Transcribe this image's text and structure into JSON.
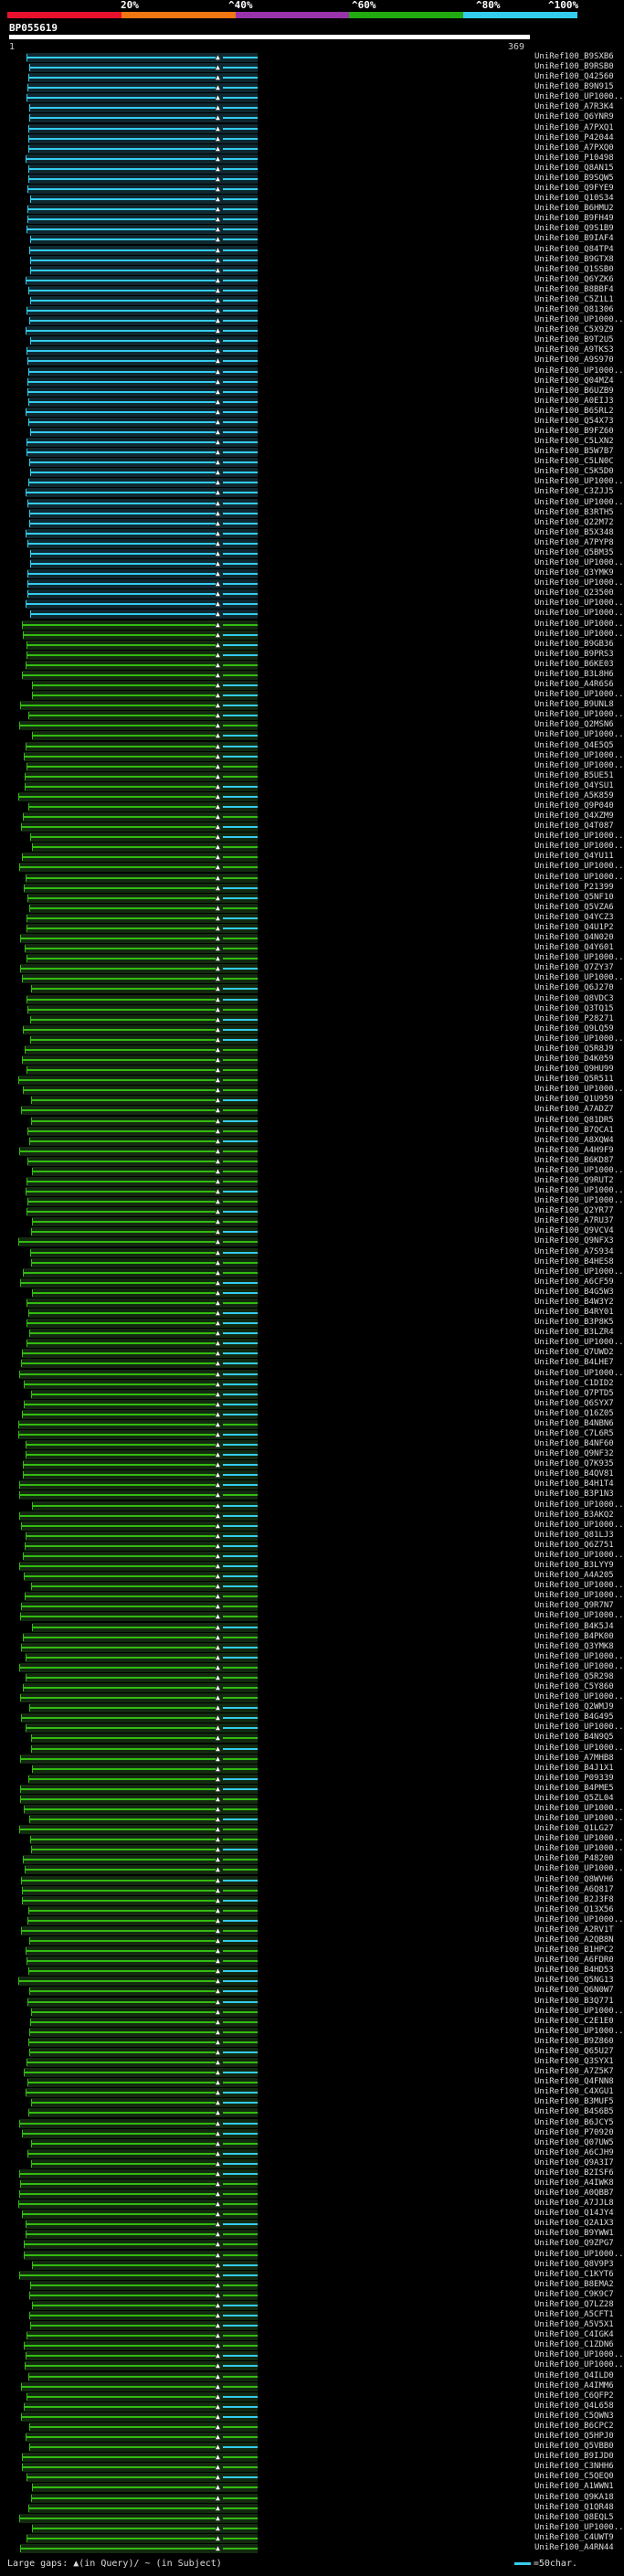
{
  "header": {
    "percent_labels": [
      "20%",
      "^40%",
      "^60%",
      "^80%",
      "^100%"
    ],
    "color_segments": [
      {
        "color": "#e8112d",
        "width": 0.2
      },
      {
        "color": "#ee7711",
        "width": 0.2
      },
      {
        "color": "#9933aa",
        "width": 0.2
      },
      {
        "color": "#22aa11",
        "width": 0.2
      },
      {
        "color": "#33ccee",
        "width": 0.2
      }
    ]
  },
  "query": {
    "id": "BP055619",
    "scale_start": "1",
    "scale_end": "369"
  },
  "colors": {
    "cyan": "#33ccee",
    "green": "#33bb11",
    "white": "#ffffff"
  },
  "hits": [
    "UniRef100_B9SXB6",
    "UniRef100_B9RSB0",
    "UniRef100_Q42560",
    "UniRef100_B9N915",
    "UniRef100_UP1000..",
    "UniRef100_A7R3K4",
    "UniRef100_Q6YNR9",
    "UniRef100_A7PXQ1",
    "UniRef100_P42044",
    "UniRef100_A7PXQ0",
    "UniRef100_P10498",
    "UniRef100_Q8AN15",
    "UniRef100_B9SQW5",
    "UniRef100_Q9FYE9",
    "UniRef100_Q10S34",
    "UniRef100_B6HMU2",
    "UniRef100_B9FH49",
    "UniRef100_Q9S1B9",
    "UniRef100_B9IAF4",
    "UniRef100_Q84TP4",
    "UniRef100_B9GTX8",
    "UniRef100_Q1SSB0",
    "UniRef100_Q6YZK6",
    "UniRef100_B8BBF4",
    "UniRef100_C5Z1L1",
    "UniRef100_Q81306",
    "UniRef100_UP1000..",
    "UniRef100_C5X9Z9",
    "UniRef100_B9T2U5",
    "UniRef100_A9TKS3",
    "UniRef100_A9S970",
    "UniRef100_UP1000..",
    "UniRef100_Q04MZ4",
    "UniRef100_B6UZB9",
    "UniRef100_A0EIJ3",
    "UniRef100_B6SRL2",
    "UniRef100_Q54X73",
    "UniRef100_B9FZ60",
    "UniRef100_C5LXN2",
    "UniRef100_B5W7B7",
    "UniRef100_C5LN0C",
    "UniRef100_C5K5D0",
    "UniRef100_UP1000..",
    "UniRef100_C3ZJJ5",
    "UniRef100_UP1000..",
    "UniRef100_B3RTH5",
    "UniRef100_Q22M72",
    "UniRef100_B5X348",
    "UniRef100_A7PYP8",
    "UniRef100_Q5BM35",
    "UniRef100_UP1000..",
    "UniRef100_Q3YMK9",
    "UniRef100_UP1000..",
    "UniRef100_Q23500",
    "UniRef100_UP1000..",
    "UniRef100_UP1000..",
    "UniRef100_UP1000..",
    "UniRef100_UP1000..",
    "UniRef100_B9GB36",
    "UniRef100_B9PRS3",
    "UniRef100_B6KE03",
    "UniRef100_B3L8H6",
    "UniRef100_A4R6S6",
    "UniRef100_UP1000..",
    "UniRef100_B9UNL8",
    "UniRef100_UP1000..",
    "UniRef100_Q2MSN6",
    "UniRef100_UP1000..",
    "UniRef100_Q4E5Q5",
    "UniRef100_UP1000..",
    "UniRef100_UP1000..",
    "UniRef100_B5UE51",
    "UniRef100_Q4YSU1",
    "UniRef100_A5K859",
    "UniRef100_Q9P040",
    "UniRef100_Q4XZM9",
    "UniRef100_Q4T087",
    "UniRef100_UP1000..",
    "UniRef100_UP1000..",
    "UniRef100_Q4YU11",
    "UniRef100_UP1000..",
    "UniRef100_UP1000..",
    "UniRef100_P21399",
    "UniRef100_Q5NF10",
    "UniRef100_Q5VZA6",
    "UniRef100_Q4YCZ3",
    "UniRef100_Q4U1P2",
    "UniRef100_Q4N020",
    "UniRef100_Q4Y601",
    "UniRef100_UP1000..",
    "UniRef100_Q7ZY37",
    "UniRef100_UP1000..",
    "UniRef100_Q6J270",
    "UniRef100_Q8VDC3",
    "UniRef100_Q3TQ15",
    "UniRef100_P28271",
    "UniRef100_Q9LQ59",
    "UniRef100_UP1000..",
    "UniRef100_Q5R8J9",
    "UniRef100_D4K059",
    "UniRef100_Q9HU99",
    "UniRef100_Q5R511",
    "UniRef100_UP1000..",
    "UniRef100_Q1U959",
    "UniRef100_A7ADZ7",
    "UniRef100_Q81DR5",
    "UniRef100_B7QCA1",
    "UniRef100_A8XQW4",
    "UniRef100_A4H9F9",
    "UniRef100_B6KD87",
    "UniRef100_UP1000..",
    "UniRef100_Q9RUT2",
    "UniRef100_UP1000..",
    "UniRef100_UP1000..",
    "UniRef100_Q2YR77",
    "UniRef100_A7RU37",
    "UniRef100_Q9VCV4",
    "UniRef100_Q9NFX3",
    "UniRef100_A7S934",
    "UniRef100_B4HES8",
    "UniRef100_UP1000..",
    "UniRef100_A6CF59",
    "UniRef100_B4G5W3",
    "UniRef100_B4W3Y2",
    "UniRef100_B4RY01",
    "UniRef100_B3P8K5",
    "UniRef100_B3LZR4",
    "UniRef100_UP1000..",
    "UniRef100_Q7UWD2",
    "UniRef100_B4LHE7",
    "UniRef100_UP1000..",
    "UniRef100_C1DID2",
    "UniRef100_Q7PTD5",
    "UniRef100_Q6SYX7",
    "UniRef100_Q16Z05",
    "UniRef100_B4NBN6",
    "UniRef100_C7L6R5",
    "UniRef100_B4NF60",
    "UniRef100_Q9NF32",
    "UniRef100_Q7K935",
    "UniRef100_B4QV81",
    "UniRef100_B4H1T4",
    "UniRef100_B3P1N3",
    "UniRef100_UP1000..",
    "UniRef100_B3AKQ2",
    "UniRef100_UP1000..",
    "UniRef100_Q81LJ3",
    "UniRef100_Q6Z751",
    "UniRef100_UP1000..",
    "UniRef100_B3LYY9",
    "UniRef100_A4A205",
    "UniRef100_UP1000..",
    "UniRef100_UP1000..",
    "UniRef100_Q9R7N7",
    "UniRef100_UP1000..",
    "UniRef100_B4K5J4",
    "UniRef100_B4PK00",
    "UniRef100_Q3YMK8",
    "UniRef100_UP1000..",
    "UniRef100_UP1000..",
    "UniRef100_Q5R298",
    "UniRef100_C5Y860",
    "UniRef100_UP1000..",
    "UniRef100_Q2WMJ9",
    "UniRef100_B4G495",
    "UniRef100_UP1000..",
    "UniRef100_B4N9Q5",
    "UniRef100_UP1000..",
    "UniRef100_A7MHB8",
    "UniRef100_B4J1X1",
    "UniRef100_P09339",
    "UniRef100_B4PME5",
    "UniRef100_Q5ZL04",
    "UniRef100_UP1000..",
    "UniRef100_UP1000..",
    "UniRef100_Q1LG27",
    "UniRef100_UP1000..",
    "UniRef100_UP1000..",
    "UniRef100_P48200",
    "UniRef100_UP1000..",
    "UniRef100_Q8WVH6",
    "UniRef100_A6Q817",
    "UniRef100_B2J3F8",
    "UniRef100_Q13X56",
    "UniRef100_UP1000..",
    "UniRef100_A2RV1T",
    "UniRef100_A2QB8N",
    "UniRef100_B1HPC2",
    "UniRef100_A6FDR0",
    "UniRef100_B4HD53",
    "UniRef100_Q5NG13",
    "UniRef100_Q6N0W7",
    "UniRef100_B3Q771",
    "UniRef100_UP1000..",
    "UniRef100_C2E1E0",
    "UniRef100_UP1000..",
    "UniRef100_B9Z860",
    "UniRef100_Q65U27",
    "UniRef100_Q3SYX1",
    "UniRef100_A7Z5K7",
    "UniRef100_Q4FNN8",
    "UniRef100_C4XGU1",
    "UniRef100_B3MUF5",
    "UniRef100_B4S6B5",
    "UniRef100_B6JCY5",
    "UniRef100_P70920",
    "UniRef100_Q07UW5",
    "UniRef100_A6CJH9",
    "UniRef100_Q9A3I7",
    "UniRef100_B2ISF6",
    "UniRef100_A4IWK8",
    "UniRef100_A0QBB7",
    "UniRef100_A7JJL8",
    "UniRef100_Q14JY4",
    "UniRef100_Q2A1X3",
    "UniRef100_B9YWW1",
    "UniRef100_Q9ZPG7",
    "UniRef100_UP1000..",
    "UniRef100_Q8V9P3",
    "UniRef100_C1KYT6",
    "UniRef100_B8EMA2",
    "UniRef100_C9K9C7",
    "UniRef100_Q7LZ28",
    "UniRef100_A5CFT1",
    "UniRef100_A5V5X1",
    "UniRef100_C4IGK4",
    "UniRef100_C1ZDN6",
    "UniRef100_UP1000..",
    "UniRef100_UP1000..",
    "UniRef100_Q4ILD0",
    "UniRef100_A4IMM6",
    "UniRef100_C6QFP2",
    "UniRef100_Q4L658",
    "UniRef100_C5QWN3",
    "UniRef100_B6CPC2",
    "UniRef100_Q5HPJ0",
    "UniRef100_Q5VBB0",
    "UniRef100_B9IJD0",
    "UniRef100_C3NHH6",
    "UniRef100_C5QEQ0",
    "UniRef100_A1WWN1",
    "UniRef100_Q9KA18",
    "UniRef100_Q1QR48",
    "UniRef100_Q8EQL5",
    "UniRef100_UP1000..",
    "UniRef100_C4UWT9",
    "UniRef100_A4RN44"
  ],
  "footer": {
    "gaps_label": "Large gaps: ▲(in Query)/ ~ (in Subject)",
    "legend_label": "=50char."
  }
}
